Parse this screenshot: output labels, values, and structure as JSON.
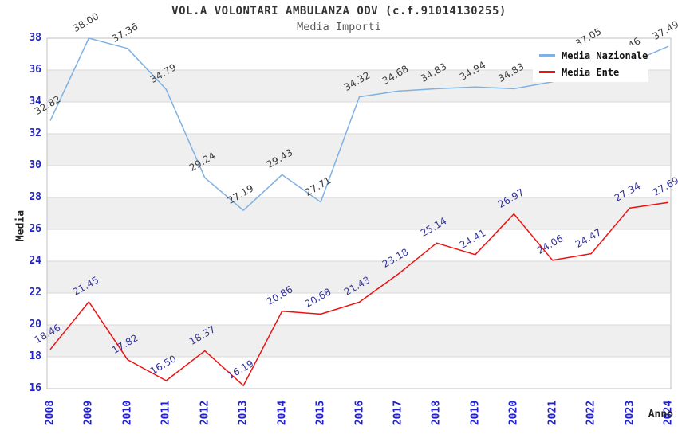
{
  "title": "VOL.A VOLONTARI AMBULANZA ODV (c.f.91014130255)",
  "subtitle": "Media Importi",
  "legend": {
    "items": [
      {
        "label": "Media Nazionale",
        "color": "#7fb1e2"
      },
      {
        "label": "Media Ente",
        "color": "#ee1111"
      }
    ]
  },
  "axes": {
    "y_title": "Media",
    "x_title": "Anno",
    "y_ticks": [
      38,
      36,
      34,
      32,
      30,
      28,
      26,
      24,
      22,
      20,
      18,
      16
    ],
    "x_ticks": [
      "2008",
      "2009",
      "2010",
      "2011",
      "2012",
      "2013",
      "2014",
      "2015",
      "2016",
      "2017",
      "2018",
      "2019",
      "2020",
      "2021",
      "2022",
      "2023",
      "2024"
    ],
    "tick_color": "#2222cc"
  },
  "colors": {
    "band_gray": "#efefef",
    "band_white": "#ffffff",
    "grid_line": "#d9d9d9",
    "plot_border": "#c0c0c0",
    "title_color": "#333333",
    "subtitle_color": "#595959",
    "nazionale_line": "#7fb1e2",
    "ente_line": "#ee1111",
    "nazionale_label": "#3a3a3a",
    "ente_label": "#333399"
  },
  "chart_data": {
    "type": "line",
    "title": "VOL.A VOLONTARI AMBULANZA ODV (c.f.91014130255)",
    "subtitle": "Media Importi",
    "xlabel": "Anno",
    "ylabel": "Media",
    "x": [
      2008,
      2009,
      2010,
      2011,
      2012,
      2013,
      2014,
      2015,
      2016,
      2017,
      2018,
      2019,
      2020,
      2021,
      2022,
      2023,
      2024
    ],
    "ylim": [
      16,
      38
    ],
    "grid": "horizontal-bands-and-lines-every-2",
    "legend_position": "top-right-inside",
    "series": [
      {
        "name": "Media Nazionale",
        "color": "#7fb1e2",
        "label_color": "#3a3a3a",
        "values": [
          32.82,
          38.0,
          37.36,
          34.79,
          29.24,
          27.19,
          29.43,
          27.71,
          34.32,
          34.68,
          34.83,
          34.94,
          34.83,
          35.26,
          37.05,
          36.46,
          37.49
        ],
        "point_labels": [
          "32.82",
          "38.00",
          "37.36",
          "34.79",
          "29.24",
          "27.19",
          "29.43",
          "27.71",
          "34.32",
          "34.68",
          "34.83",
          "34.94",
          "34.83",
          "",
          "37.05",
          "36.46",
          "37.49"
        ]
      },
      {
        "name": "Media Ente",
        "color": "#ee1111",
        "label_color": "#333399",
        "values": [
          18.46,
          21.45,
          17.82,
          16.5,
          18.37,
          16.19,
          20.86,
          20.68,
          21.43,
          23.18,
          25.14,
          24.41,
          26.97,
          24.06,
          24.47,
          27.34,
          27.69
        ],
        "point_labels": [
          "18.46",
          "21.45",
          "17.82",
          "16.50",
          "18.37",
          "16.19",
          "20.86",
          "20.68",
          "21.43",
          "23.18",
          "25.14",
          "24.41",
          "26.97",
          "24.06",
          "24.47",
          "27.34",
          "27.69"
        ]
      }
    ]
  }
}
